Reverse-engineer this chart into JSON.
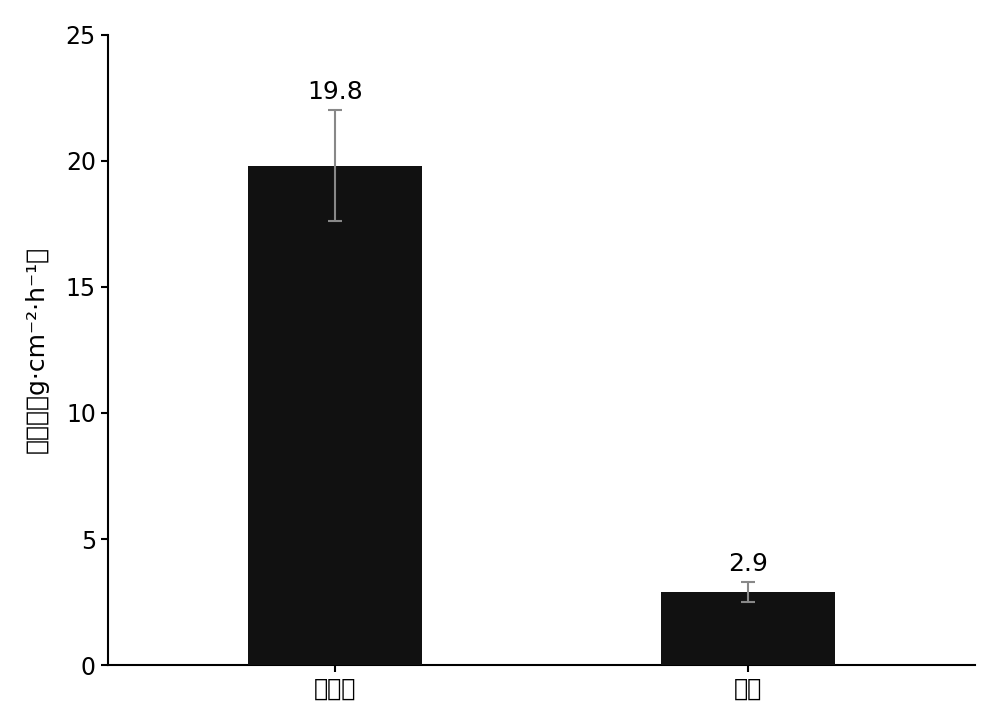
{
  "categories": [
    "未处理",
    "氮化"
  ],
  "values": [
    19.8,
    2.9
  ],
  "errors": [
    2.2,
    0.4
  ],
  "bar_color": "#111111",
  "bar_width": 0.42,
  "ylim": [
    0,
    25
  ],
  "yticks": [
    0,
    5,
    10,
    15,
    20,
    25
  ],
  "ylabel_chinese": "失重率",
  "ylabel_latin": "g·cm⁻²·h⁻¹",
  "value_labels": [
    "19.8",
    "2.9"
  ],
  "error_color": "#888888",
  "error_capsize": 5,
  "error_linewidth": 1.5,
  "label_fontsize": 18,
  "tick_fontsize": 17,
  "value_label_fontsize": 18,
  "background_color": "#ffffff",
  "spine_linewidth": 1.5
}
